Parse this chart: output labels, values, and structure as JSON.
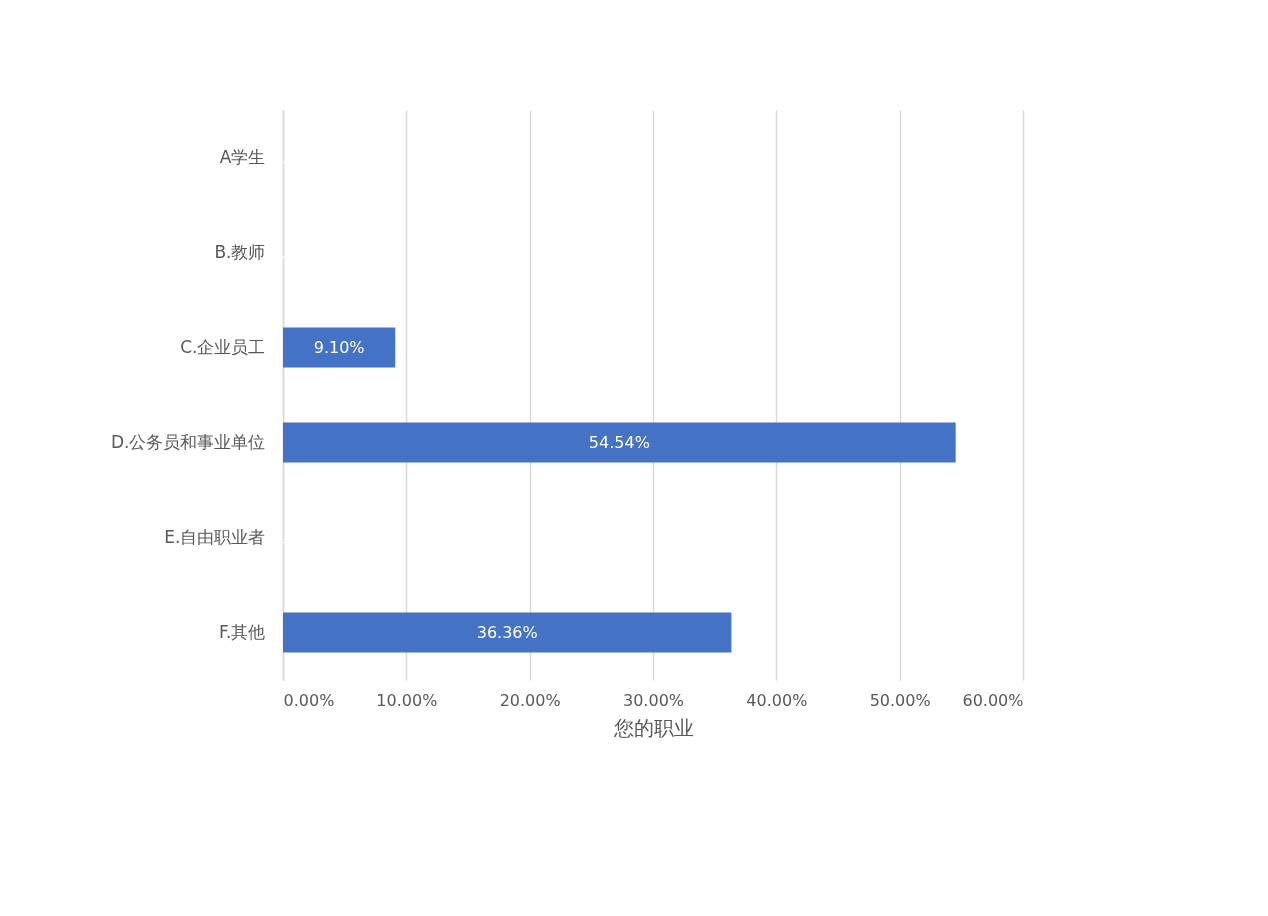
{
  "chart_data": {
    "type": "bar",
    "orientation": "horizontal",
    "xlabel": "您的职业",
    "categories": [
      "A学生",
      "B.教师",
      "C.企业员工",
      "D.公务员和事业单位",
      "E.自由职业者",
      "F.其他"
    ],
    "values": [
      0,
      0,
      9.1,
      54.54,
      0,
      36.36
    ],
    "value_labels": [
      null,
      null,
      "9.10%",
      "54.54%",
      null,
      "36.36%"
    ],
    "color": "#4472c4",
    "xlim": [
      0,
      60
    ],
    "xticks": [
      {
        "value": 0,
        "label": "0.00%"
      },
      {
        "value": 10,
        "label": "10.00%"
      },
      {
        "value": 20,
        "label": "20.00%"
      },
      {
        "value": 30,
        "label": "30.00%"
      },
      {
        "value": 40,
        "label": "40.00%"
      },
      {
        "value": 50,
        "label": "50.00%"
      },
      {
        "value": 60,
        "label": "60.00%"
      }
    ],
    "grid": "x"
  }
}
